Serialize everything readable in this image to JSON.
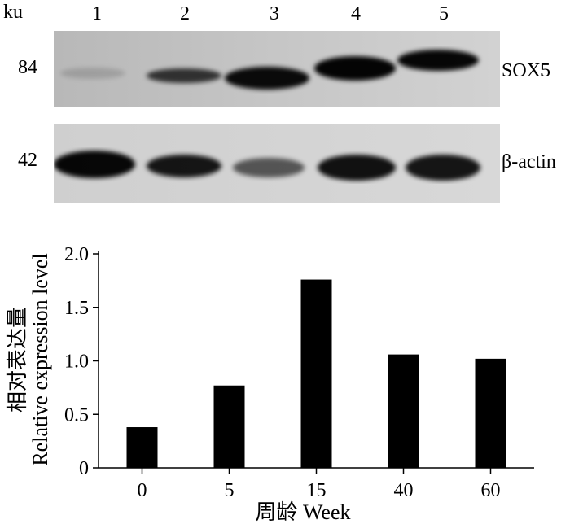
{
  "blot": {
    "unit_label": "ku",
    "lanes": [
      "1",
      "2",
      "3",
      "4",
      "5"
    ],
    "rows": [
      {
        "mw": "84",
        "protein": "SOX5",
        "band_intensity": [
          0.15,
          0.75,
          0.95,
          0.98,
          0.97
        ]
      },
      {
        "mw": "42",
        "protein": "β-actin",
        "band_intensity": [
          0.97,
          0.9,
          0.6,
          0.92,
          0.9
        ]
      }
    ]
  },
  "chart_data": {
    "type": "bar",
    "categories": [
      "0",
      "5",
      "15",
      "40",
      "60"
    ],
    "values": [
      0.38,
      0.77,
      1.76,
      1.06,
      1.02
    ],
    "xlabel": "周龄 Week",
    "ylabel_cn": "相对表达量",
    "ylabel": "Relative expression level",
    "ylim": [
      0,
      2.0
    ],
    "yticks": [
      "0",
      "0.5",
      "1.0",
      "1.5",
      "2.0"
    ],
    "ytick_values": [
      0,
      0.5,
      1.0,
      1.5,
      2.0
    ],
    "bar_color": "#000000",
    "grid": false
  }
}
